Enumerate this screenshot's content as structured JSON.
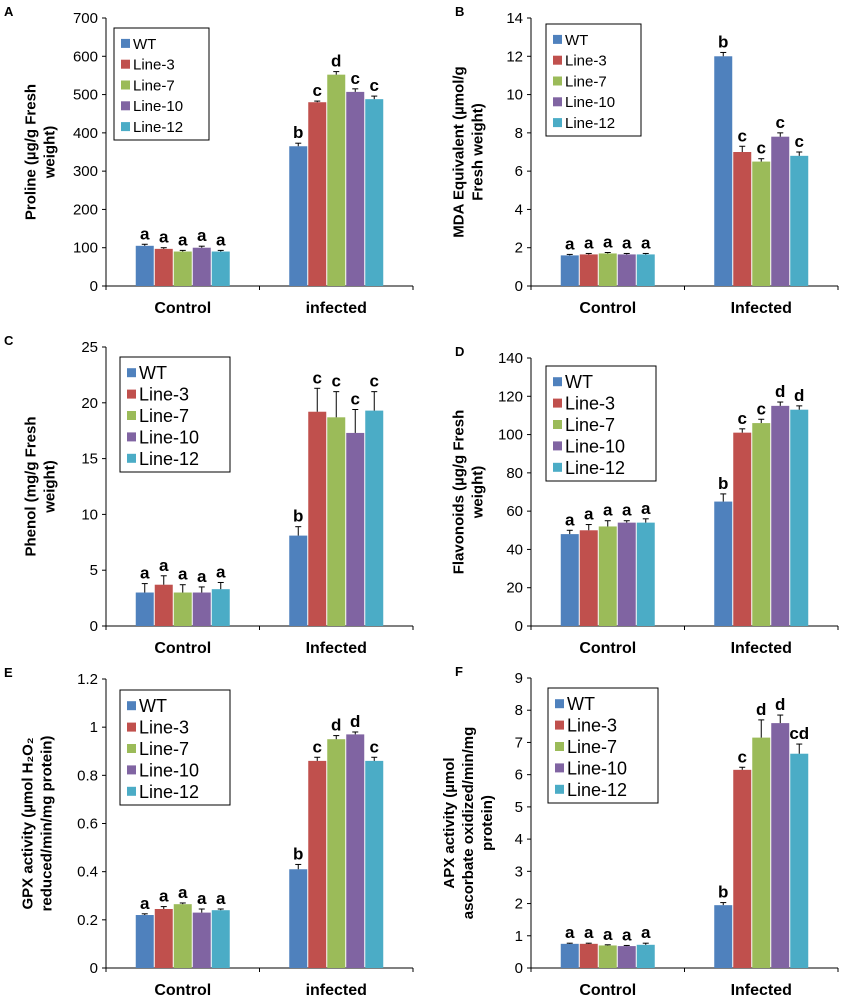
{
  "figure": {
    "colors": {
      "WT": "#4F81BD",
      "Line-3": "#C0504D",
      "Line-7": "#9BBB59",
      "Line-10": "#8064A2",
      "Line-12": "#4BACC6"
    }
  },
  "chart_data": [
    {
      "panel": "A",
      "type": "bar",
      "ylabel_lines": [
        "Proline (µg/g Fresh",
        "weight)"
      ],
      "categories": [
        "Control",
        "infected"
      ],
      "legend": [
        "WT",
        "Line-3",
        "Line-7",
        "Line-10",
        "Line-12"
      ],
      "ylim": [
        0,
        700
      ],
      "yticks": [
        "0",
        "100",
        "200",
        "300",
        "400",
        "500",
        "600",
        "700"
      ],
      "series": [
        {
          "name": "WT",
          "values": [
            105,
            365
          ],
          "errors": [
            4,
            8
          ]
        },
        {
          "name": "Line-3",
          "values": [
            97,
            480
          ],
          "errors": [
            3,
            3
          ]
        },
        {
          "name": "Line-7",
          "values": [
            90,
            552
          ],
          "errors": [
            3,
            8
          ]
        },
        {
          "name": "Line-10",
          "values": [
            100,
            507
          ],
          "errors": [
            4,
            8
          ]
        },
        {
          "name": "Line-12",
          "values": [
            90,
            488
          ],
          "errors": [
            3,
            8
          ]
        }
      ],
      "letters": [
        [
          "a",
          "a",
          "a",
          "a",
          "a"
        ],
        [
          "b",
          "c",
          "d",
          "c",
          "c"
        ]
      ]
    },
    {
      "panel": "B",
      "type": "bar",
      "ylabel_lines": [
        "MDA Equivalent (µmol/g",
        "Fresh weight)"
      ],
      "categories": [
        "Control",
        "Infected"
      ],
      "legend": [
        "WT",
        "Line-3",
        "Line-7",
        "Line-10",
        "Line-12"
      ],
      "ylim": [
        0,
        14
      ],
      "yticks": [
        "0",
        "2",
        "4",
        "6",
        "8",
        "10",
        "12",
        "14"
      ],
      "series": [
        {
          "name": "WT",
          "values": [
            1.6,
            12.0
          ],
          "errors": [
            0.05,
            0.2
          ]
        },
        {
          "name": "Line-3",
          "values": [
            1.65,
            7.0
          ],
          "errors": [
            0.05,
            0.3
          ]
        },
        {
          "name": "Line-7",
          "values": [
            1.7,
            6.5
          ],
          "errors": [
            0.05,
            0.15
          ]
        },
        {
          "name": "Line-10",
          "values": [
            1.65,
            7.8
          ],
          "errors": [
            0.05,
            0.2
          ]
        },
        {
          "name": "Line-12",
          "values": [
            1.65,
            6.8
          ],
          "errors": [
            0.05,
            0.2
          ]
        }
      ],
      "letters": [
        [
          "a",
          "a",
          "a",
          "a",
          "a"
        ],
        [
          "b",
          "c",
          "c",
          "c",
          "c"
        ]
      ]
    },
    {
      "panel": "C",
      "type": "bar",
      "ylabel_lines": [
        "Phenol (mg/g Fresh",
        "weight)"
      ],
      "categories": [
        "Control",
        "Infected"
      ],
      "legend": [
        "WT",
        "Line-3",
        "Line-7",
        "Line-10",
        "Line-12"
      ],
      "ylim": [
        0,
        25
      ],
      "yticks": [
        "0",
        "5",
        "10",
        "15",
        "20",
        "25"
      ],
      "series": [
        {
          "name": "WT",
          "values": [
            3.0,
            8.1
          ],
          "errors": [
            0.8,
            0.8
          ]
        },
        {
          "name": "Line-3",
          "values": [
            3.7,
            19.2
          ],
          "errors": [
            0.8,
            2.1
          ]
        },
        {
          "name": "Line-7",
          "values": [
            3.0,
            18.7
          ],
          "errors": [
            0.7,
            2.3
          ]
        },
        {
          "name": "Line-10",
          "values": [
            3.0,
            17.3
          ],
          "errors": [
            0.5,
            2.1
          ]
        },
        {
          "name": "Line-12",
          "values": [
            3.3,
            19.3
          ],
          "errors": [
            0.6,
            1.7
          ]
        }
      ],
      "letters": [
        [
          "a",
          "a",
          "a",
          "a",
          "a"
        ],
        [
          "b",
          "c",
          "c",
          "c",
          "c"
        ]
      ]
    },
    {
      "panel": "D",
      "type": "bar",
      "ylabel_lines": [
        "Flavonoids (µg/g Fresh",
        "weight)"
      ],
      "categories": [
        "Control",
        "Infected"
      ],
      "legend": [
        "WT",
        "Line-3",
        "Line-7",
        "Line-10",
        "Line-12"
      ],
      "ylim": [
        0,
        140
      ],
      "yticks": [
        "0",
        "20",
        "40",
        "60",
        "80",
        "100",
        "120",
        "140"
      ],
      "series": [
        {
          "name": "WT",
          "values": [
            48,
            65
          ],
          "errors": [
            2,
            4
          ]
        },
        {
          "name": "Line-3",
          "values": [
            50,
            101
          ],
          "errors": [
            3,
            2
          ]
        },
        {
          "name": "Line-7",
          "values": [
            52,
            106
          ],
          "errors": [
            3,
            2
          ]
        },
        {
          "name": "Line-10",
          "values": [
            54,
            115
          ],
          "errors": [
            1,
            2
          ]
        },
        {
          "name": "Line-12",
          "values": [
            54,
            113
          ],
          "errors": [
            2,
            2
          ]
        }
      ],
      "letters": [
        [
          "a",
          "a",
          "a",
          "a",
          "a"
        ],
        [
          "b",
          "c",
          "c",
          "d",
          "d"
        ]
      ]
    },
    {
      "panel": "E",
      "type": "bar",
      "ylabel_lines": [
        "GPX activity (µmol H₂O₂",
        "reduced/min/mg protein)"
      ],
      "categories": [
        "Control",
        "infected"
      ],
      "legend": [
        "WT",
        "Line-3",
        "Line-7",
        "Line-10",
        "Line-12"
      ],
      "ylim": [
        0,
        1.2
      ],
      "yticks": [
        "0",
        "0.2",
        "0.4",
        "0.6",
        "0.8",
        "1",
        "1.2"
      ],
      "series": [
        {
          "name": "WT",
          "values": [
            0.22,
            0.41
          ],
          "errors": [
            0.005,
            0.02
          ]
        },
        {
          "name": "Line-3",
          "values": [
            0.245,
            0.86
          ],
          "errors": [
            0.01,
            0.015
          ]
        },
        {
          "name": "Line-7",
          "values": [
            0.265,
            0.95
          ],
          "errors": [
            0.005,
            0.015
          ]
        },
        {
          "name": "Line-10",
          "values": [
            0.23,
            0.97
          ],
          "errors": [
            0.015,
            0.01
          ]
        },
        {
          "name": "Line-12",
          "values": [
            0.24,
            0.86
          ],
          "errors": [
            0.005,
            0.015
          ]
        }
      ],
      "letters": [
        [
          "a",
          "a",
          "a",
          "a",
          "a"
        ],
        [
          "b",
          "c",
          "d",
          "d",
          "c"
        ]
      ]
    },
    {
      "panel": "F",
      "type": "bar",
      "ylabel_lines": [
        "APX activity (µmol",
        "ascorbate oxidized/min/mg",
        "protein)"
      ],
      "categories": [
        "Control",
        "Infected"
      ],
      "legend": [
        "WT",
        "Line-3",
        "Line-7",
        "Line-10",
        "Line-12"
      ],
      "ylim": [
        0,
        9
      ],
      "yticks": [
        "0",
        "1",
        "2",
        "3",
        "4",
        "5",
        "6",
        "7",
        "8",
        "9"
      ],
      "series": [
        {
          "name": "WT",
          "values": [
            0.75,
            1.95
          ],
          "errors": [
            0.02,
            0.08
          ]
        },
        {
          "name": "Line-3",
          "values": [
            0.75,
            6.15
          ],
          "errors": [
            0.02,
            0.08
          ]
        },
        {
          "name": "Line-7",
          "values": [
            0.7,
            7.15
          ],
          "errors": [
            0.02,
            0.55
          ]
        },
        {
          "name": "Line-10",
          "values": [
            0.68,
            7.6
          ],
          "errors": [
            0.02,
            0.25
          ]
        },
        {
          "name": "Line-12",
          "values": [
            0.72,
            6.65
          ],
          "errors": [
            0.05,
            0.3
          ]
        }
      ],
      "letters": [
        [
          "a",
          "a",
          "a",
          "a",
          "a"
        ],
        [
          "b",
          "c",
          "d",
          "d",
          "cd"
        ]
      ]
    }
  ]
}
